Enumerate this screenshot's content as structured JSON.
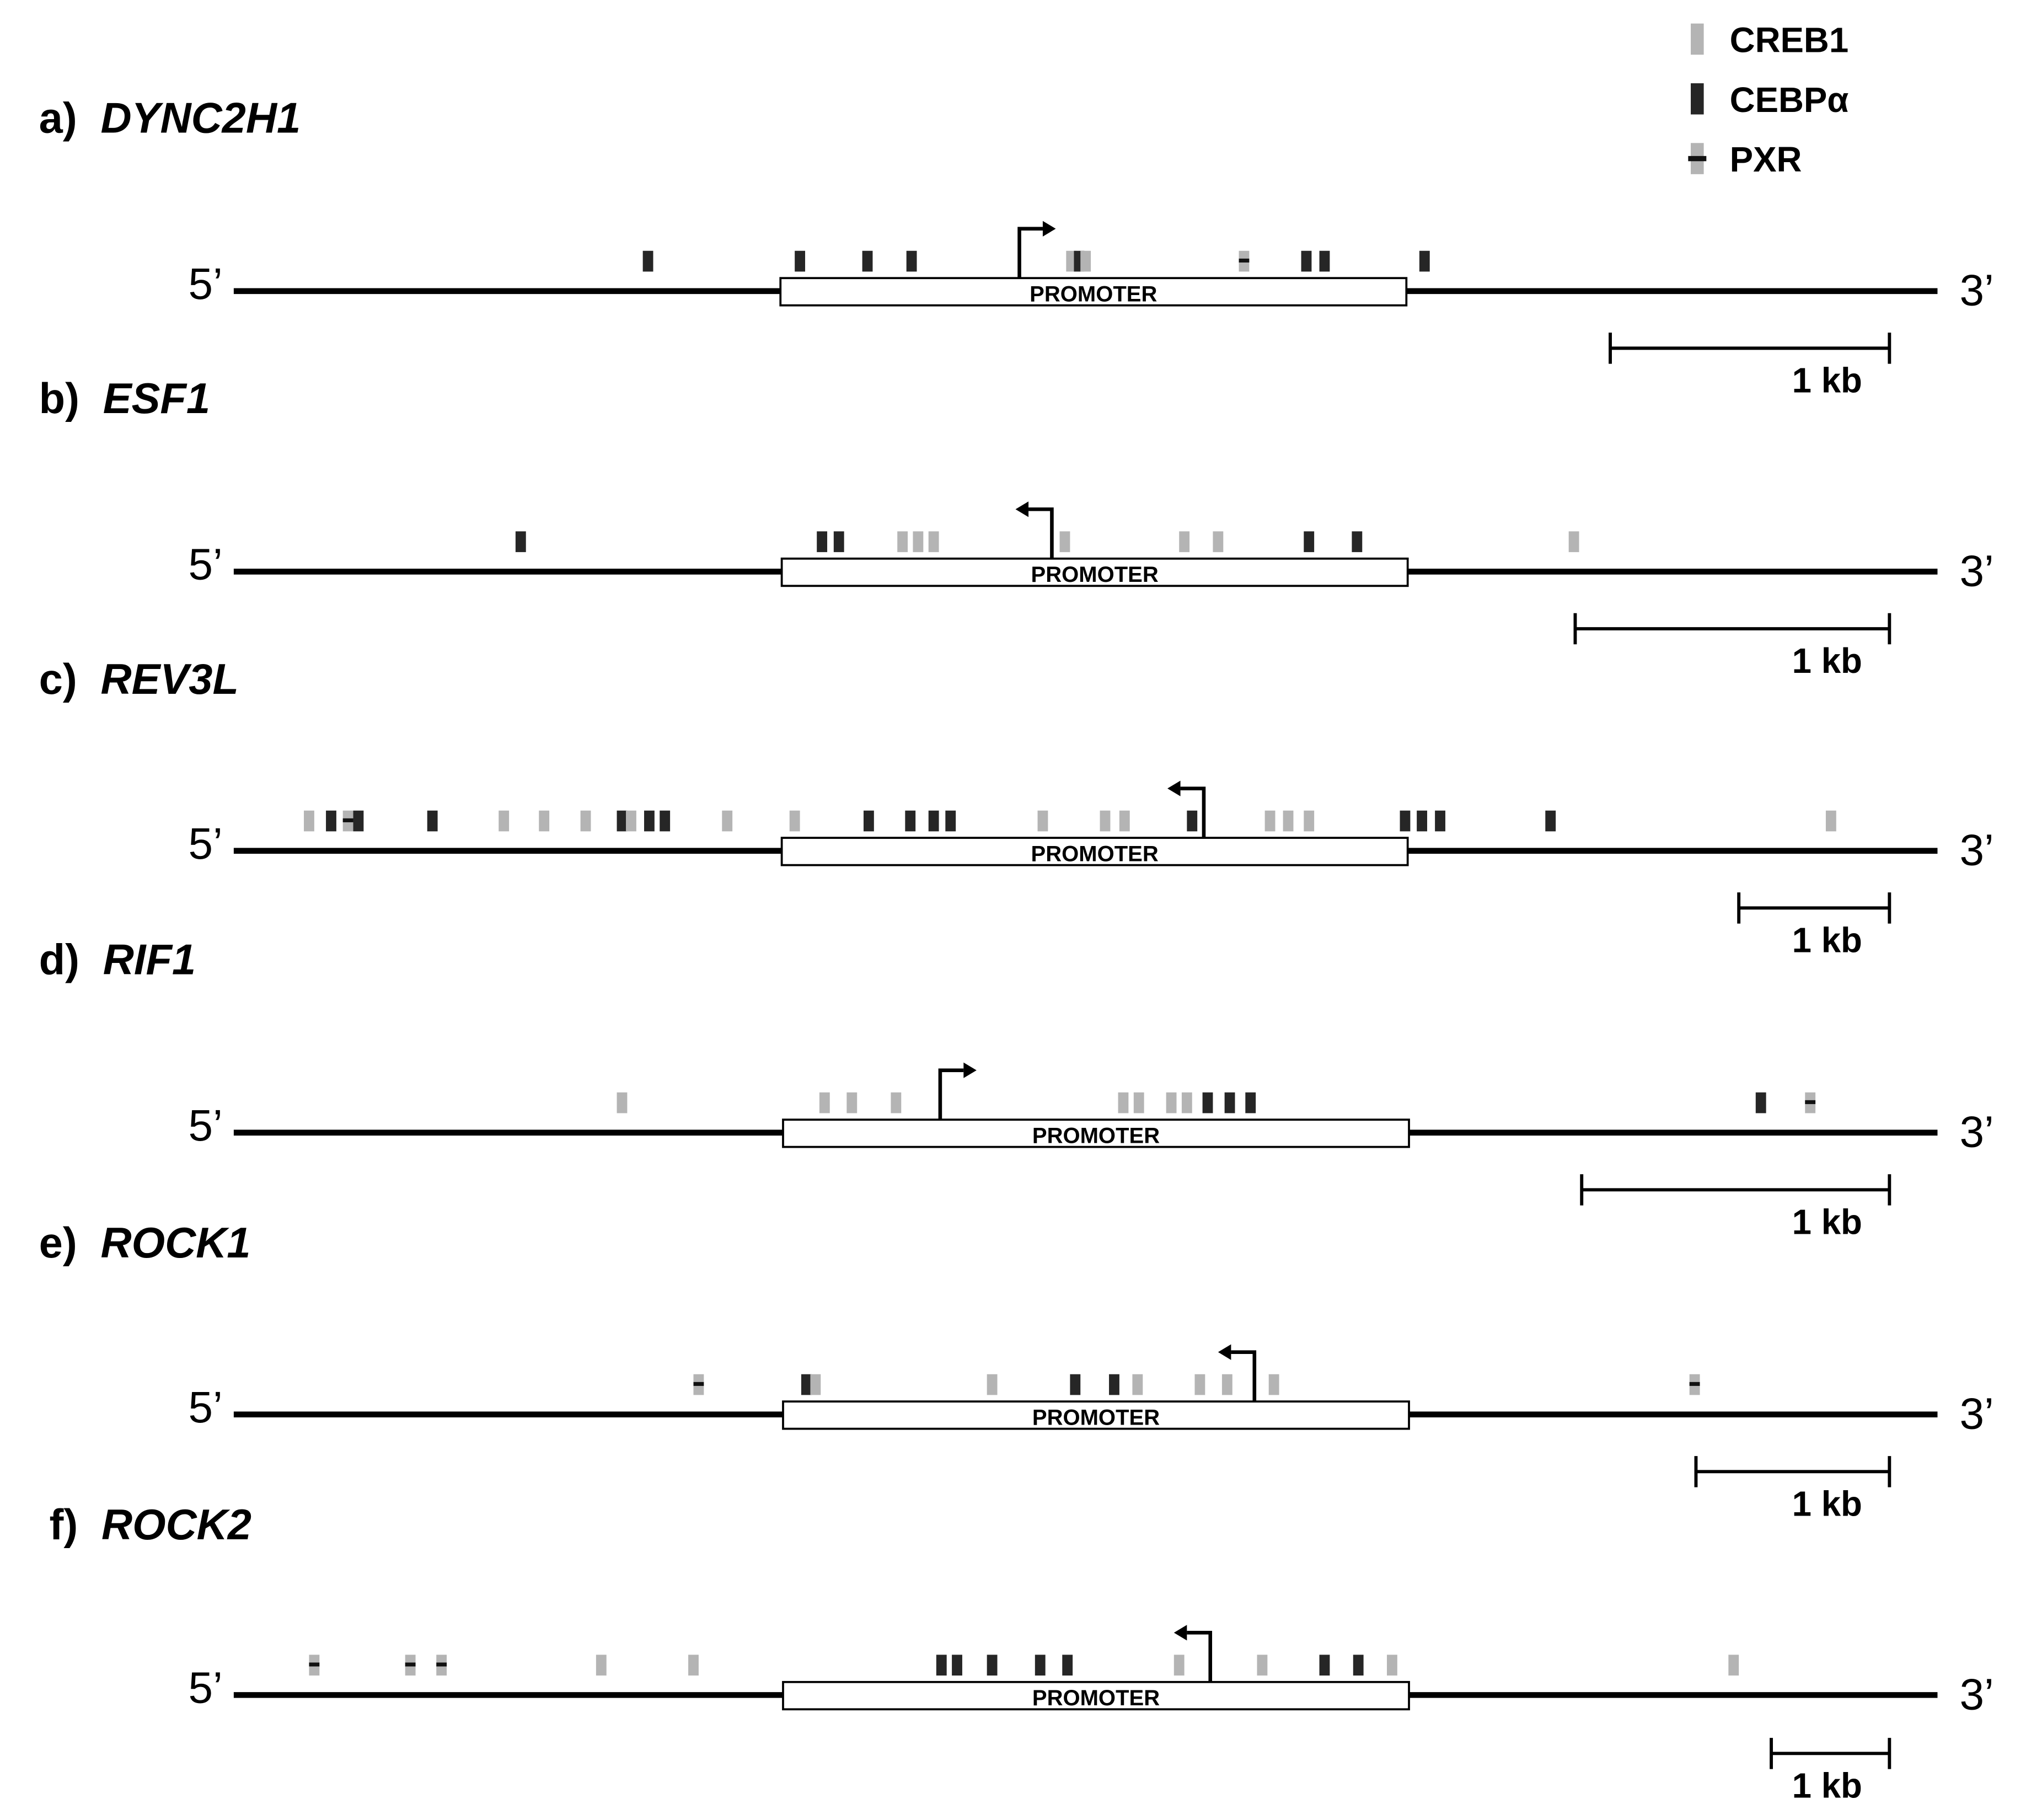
{
  "legend": {
    "items": [
      {
        "label": "CREB1",
        "kind": "creb1"
      },
      {
        "label": "CEBPα",
        "kind": "cebpa"
      },
      {
        "label": "PXR",
        "kind": "pxr"
      }
    ]
  },
  "colors": {
    "creb1": "#b4b4b4",
    "cebpa": "#262626",
    "pxr_line": "#111111",
    "line": "#000000"
  },
  "common": {
    "five_prime": "5’",
    "three_prime": "3’",
    "promoter": "PROMOTER",
    "scale_label": "1 kb"
  },
  "panels": [
    {
      "id": "a",
      "label": "a)",
      "gene": "DYNC2H1",
      "tss_dir": "right"
    },
    {
      "id": "b",
      "label": "b)",
      "gene": "ESF1",
      "tss_dir": "left"
    },
    {
      "id": "c",
      "label": "c)",
      "gene": "REV3L",
      "tss_dir": "left"
    },
    {
      "id": "d",
      "label": "d)",
      "gene": "RIF1",
      "tss_dir": "right"
    },
    {
      "id": "e",
      "label": "e)",
      "gene": "ROCK1",
      "tss_dir": "left"
    },
    {
      "id": "f",
      "label": "f)",
      "gene": "ROCK2",
      "tss_dir": "left"
    }
  ]
}
